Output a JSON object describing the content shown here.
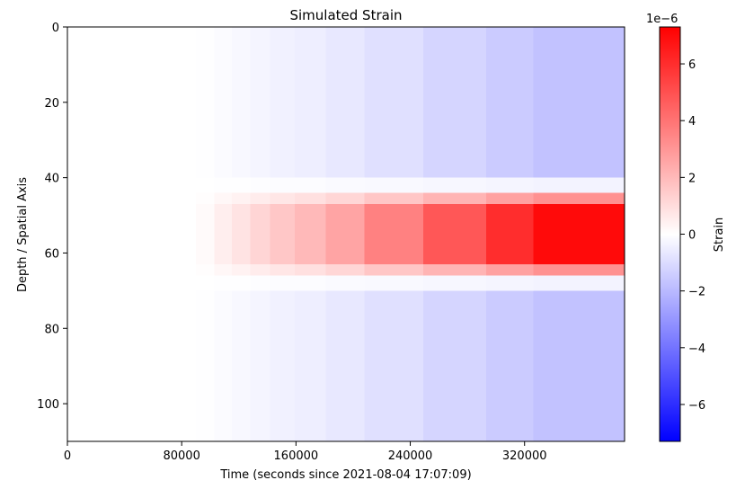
{
  "chart_data": {
    "type": "heatmap",
    "title": "Simulated Strain",
    "xlabel": "Time (seconds since 2021-08-04 17:07:09)",
    "ylabel": "Depth / Spatial Axis",
    "xlim": [
      0,
      390000
    ],
    "ylim": [
      110,
      0
    ],
    "x_ticks": [
      {
        "value": 0,
        "label": "0"
      },
      {
        "value": 80000,
        "label": "80000"
      },
      {
        "value": 160000,
        "label": "160000"
      },
      {
        "value": 240000,
        "label": "240000"
      },
      {
        "value": 320000,
        "label": "320000"
      }
    ],
    "y_ticks": [
      {
        "value": 0,
        "label": "0"
      },
      {
        "value": 20,
        "label": "20"
      },
      {
        "value": 40,
        "label": "40"
      },
      {
        "value": 60,
        "label": "60"
      },
      {
        "value": 80,
        "label": "80"
      },
      {
        "value": 100,
        "label": "100"
      }
    ],
    "time_bins": [
      {
        "x0": 0,
        "x1": 90000,
        "strain_max": 0.0
      },
      {
        "x0": 90000,
        "x1": 103000,
        "strain_max": 0.15
      },
      {
        "x0": 103000,
        "x1": 115000,
        "strain_max": 0.5
      },
      {
        "x0": 115000,
        "x1": 128000,
        "strain_max": 0.8
      },
      {
        "x0": 128000,
        "x1": 142000,
        "strain_max": 1.2
      },
      {
        "x0": 142000,
        "x1": 159000,
        "strain_max": 1.6
      },
      {
        "x0": 159000,
        "x1": 181000,
        "strain_max": 2.0
      },
      {
        "x0": 181000,
        "x1": 208000,
        "strain_max": 2.6
      },
      {
        "x0": 208000,
        "x1": 249000,
        "strain_max": 3.6
      },
      {
        "x0": 249000,
        "x1": 293000,
        "strain_max": 4.8
      },
      {
        "x0": 293000,
        "x1": 326000,
        "strain_max": 6.0
      },
      {
        "x0": 326000,
        "x1": 390000,
        "strain_max": 7.0
      }
    ],
    "depth_profile": {
      "layer_top": 47,
      "layer_bottom": 63,
      "halo_width": 3,
      "background_ratio": -0.25,
      "background_ratio_near_layer": -0.05
    },
    "colorbar": {
      "label": "Strain",
      "exponent_label": "1e−6",
      "colormap": "bwr",
      "vmin": -7.3,
      "vmax": 7.3,
      "ticks": [
        {
          "value": 6,
          "label": "6"
        },
        {
          "value": 4,
          "label": "4"
        },
        {
          "value": 2,
          "label": "2"
        },
        {
          "value": 0,
          "label": "0"
        },
        {
          "value": -2,
          "label": "−2"
        },
        {
          "value": -4,
          "label": "−4"
        },
        {
          "value": -6,
          "label": "−6"
        }
      ]
    }
  }
}
